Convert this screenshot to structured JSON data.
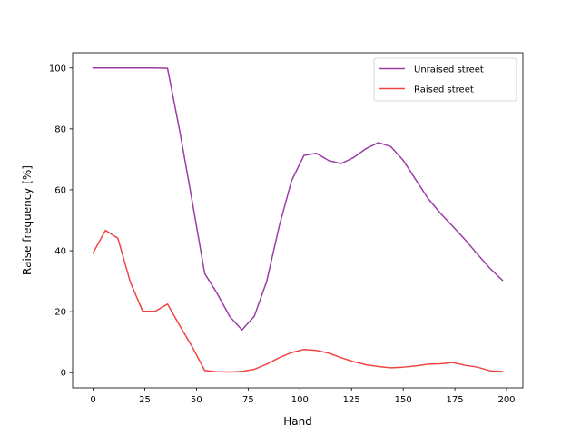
{
  "chart_data": {
    "type": "line",
    "xlabel": "Hand",
    "ylabel": "Raise frequency [%]",
    "xlim": [
      -9.9,
      207.9
    ],
    "ylim": [
      -5,
      105
    ],
    "xticks": [
      0,
      25,
      50,
      75,
      100,
      125,
      150,
      175,
      200
    ],
    "yticks": [
      0,
      20,
      40,
      60,
      80,
      100
    ],
    "grid": false,
    "legend_position": "upper right",
    "series": [
      {
        "name": "Unraised street",
        "color": "#9b3ea6",
        "x": [
          0,
          6,
          12,
          18,
          24,
          30,
          36,
          42,
          48,
          54,
          60,
          66,
          72,
          78,
          84,
          90,
          96,
          102,
          108,
          114,
          120,
          126,
          132,
          138,
          144,
          150,
          156,
          162,
          168,
          174,
          180,
          186,
          192,
          198
        ],
        "y": [
          100,
          100,
          100,
          100,
          100,
          100,
          99.9,
          79,
          56,
          32.5,
          26,
          18.5,
          14,
          18.5,
          30,
          48,
          63,
          71.3,
          72,
          69.6,
          68.6,
          70.6,
          73.5,
          75.5,
          74.2,
          69.7,
          63.4,
          57.2,
          52.3,
          48,
          43.6,
          38.8,
          34.2,
          30.3
        ]
      },
      {
        "name": "Raised street",
        "color": "#f04545",
        "x": [
          0,
          6,
          12,
          18,
          24,
          30,
          36,
          42,
          48,
          54,
          60,
          66,
          72,
          78,
          84,
          90,
          96,
          102,
          108,
          114,
          120,
          126,
          132,
          138,
          144,
          150,
          156,
          162,
          168,
          174,
          180,
          186,
          192,
          198
        ],
        "y": [
          39.3,
          46.7,
          44.1,
          29.7,
          20.1,
          20.1,
          22.5,
          15.3,
          8.4,
          0.7,
          0.3,
          0.2,
          0.4,
          1.1,
          2.8,
          4.9,
          6.6,
          7.6,
          7.3,
          6.4,
          4.9,
          3.6,
          2.6,
          2.0,
          1.6,
          1.8,
          2.2,
          2.8,
          2.9,
          3.3,
          2.4,
          1.8,
          0.6,
          0.4
        ]
      }
    ]
  }
}
